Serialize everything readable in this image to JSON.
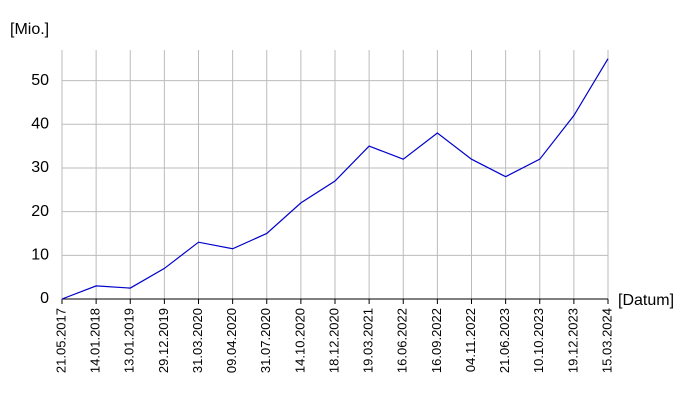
{
  "chart_data": {
    "type": "line",
    "y_label": "[Mio.]",
    "x_label": "[Datum]",
    "categories": [
      "21.05.2017",
      "14.01.2018",
      "13.01.2019",
      "29.12.2019",
      "31.03.2020",
      "09.04.2020",
      "31.07.2020",
      "14.10.2020",
      "18.12.2020",
      "19.03.2021",
      "16.06.2022",
      "16.09.2022",
      "04.11.2022",
      "21.06.2023",
      "10.10.2023",
      "19.12.2023",
      "15.03.2024"
    ],
    "series": [
      {
        "color": "#0000cc",
        "values": [
          0,
          3,
          2.5,
          7,
          13,
          11.5,
          15,
          22,
          27,
          35,
          32,
          38,
          32,
          28,
          32,
          42,
          55
        ]
      }
    ],
    "ylim": [
      0,
      57
    ],
    "yticks": [
      0,
      10,
      20,
      30,
      40,
      50
    ],
    "grid": true
  }
}
